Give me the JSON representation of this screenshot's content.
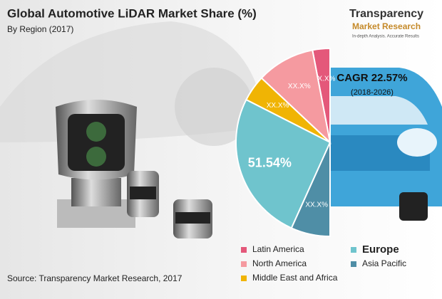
{
  "chart_data": {
    "type": "pie",
    "title": "Global Automotive LiDAR Market Share (%)",
    "subtitle": "By Region (2017)",
    "categories": [
      "Latin America",
      "North America",
      "Middle East and Africa",
      "Europe",
      "Asia Pacific"
    ],
    "values": [
      6,
      20,
      9,
      51.54,
      13.46
    ],
    "value_labels": [
      "XX.X%",
      "XX.X%",
      "XX.X%",
      "51.54%",
      "XX.X%"
    ],
    "colors": [
      "#e4587a",
      "#f59aa0",
      "#f0b404",
      "#6fc4cd",
      "#4f8ea6"
    ],
    "half": true,
    "annotations": [
      "CAGR 22.57%",
      "(2018-2026)"
    ],
    "source": "Source: Transparency Market Research, 2017"
  },
  "logo": {
    "name": "Transparency",
    "sub": "Market Research",
    "tagline": "In-depth Analysis. Accurate Results"
  }
}
